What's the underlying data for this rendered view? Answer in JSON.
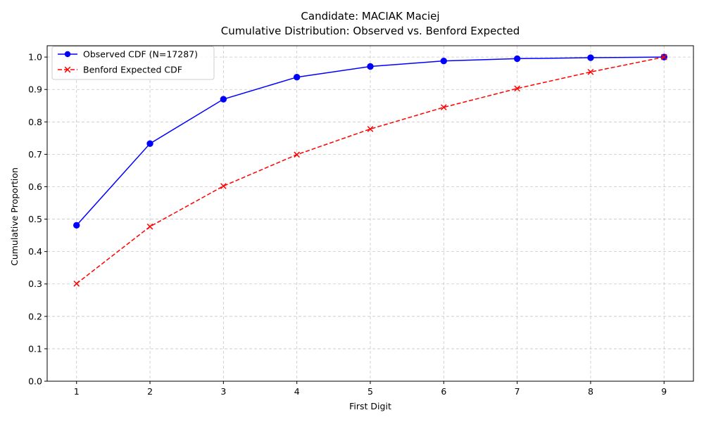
{
  "chart_data": {
    "type": "line",
    "title_line1": "Candidate: MACIAK Maciej",
    "title_line2": "Cumulative Distribution: Observed vs. Benford Expected",
    "xlabel": "First Digit",
    "ylabel": "Cumulative Proportion",
    "x": [
      1,
      2,
      3,
      4,
      5,
      6,
      7,
      8,
      9
    ],
    "xticks": [
      "1",
      "2",
      "3",
      "4",
      "5",
      "6",
      "7",
      "8",
      "9"
    ],
    "xlim": [
      0.6,
      9.4
    ],
    "ylim": [
      0.0,
      1.035
    ],
    "yticks": [
      "0.0",
      "0.1",
      "0.2",
      "0.3",
      "0.4",
      "0.5",
      "0.6",
      "0.7",
      "0.8",
      "0.9",
      "1.0"
    ],
    "ytick_values": [
      0.0,
      0.1,
      0.2,
      0.3,
      0.4,
      0.5,
      0.6,
      0.7,
      0.8,
      0.9,
      1.0
    ],
    "grid": true,
    "legend_position": "top-left",
    "series": [
      {
        "name": "Observed CDF (N=17287)",
        "values": [
          0.481,
          0.733,
          0.87,
          0.938,
          0.971,
          0.988,
          0.995,
          0.998,
          1.0
        ],
        "color": "#0000ff",
        "linestyle": "solid",
        "marker": "circle"
      },
      {
        "name": "Benford Expected CDF",
        "values": [
          0.301,
          0.477,
          0.602,
          0.699,
          0.778,
          0.845,
          0.903,
          0.954,
          1.0
        ],
        "color": "#ff0000",
        "linestyle": "dashed",
        "marker": "x"
      }
    ]
  }
}
